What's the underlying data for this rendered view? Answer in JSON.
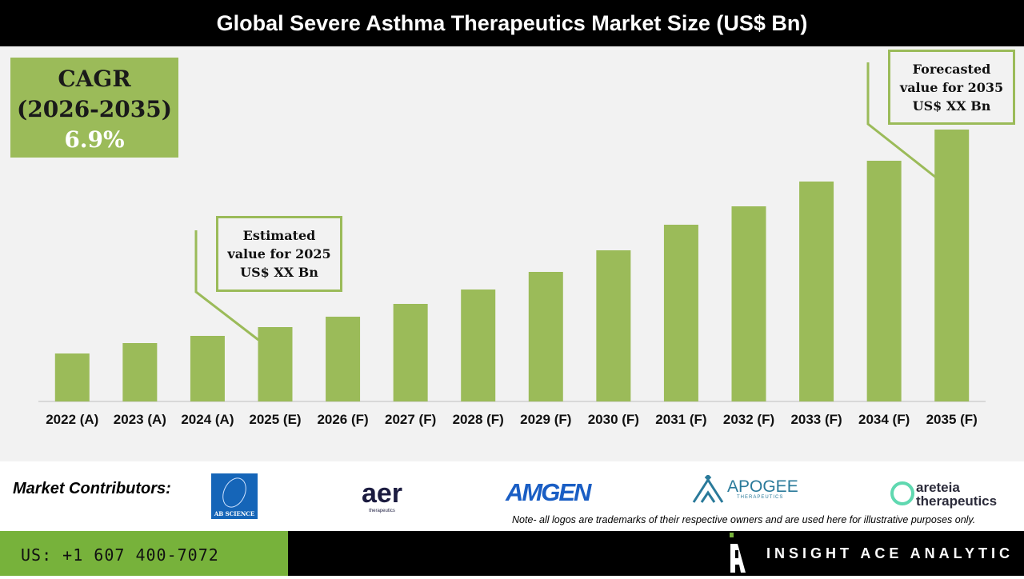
{
  "title": "Global Severe Asthma Therapeutics Market Size (US$ Bn)",
  "cagr": {
    "label": "CAGR",
    "period": "(2026-2035)",
    "value": "6.9%"
  },
  "callouts": {
    "estimated": [
      "Estimated",
      "value for 2025",
      "US$ XX Bn"
    ],
    "forecast": [
      "Forecasted",
      "value for 2035",
      "US$ XX Bn"
    ]
  },
  "chart_data": {
    "type": "bar",
    "title": "Global Severe Asthma Therapeutics Market Size (US$ Bn)",
    "categories": [
      "2022 (A)",
      "2023 (A)",
      "2024 (A)",
      "2025 (E)",
      "2026 (F)",
      "2027 (F)",
      "2028 (F)",
      "2029 (F)",
      "2030 (F)",
      "2031 (F)",
      "2032 (F)",
      "2033 (F)",
      "2034 (F)",
      "2035 (F)"
    ],
    "values": [
      60,
      73,
      82,
      93,
      106,
      122,
      140,
      162,
      189,
      221,
      244,
      275,
      301,
      340
    ],
    "value_note_relative_only": true,
    "ylim": [
      0,
      440
    ],
    "grid": false,
    "bar_color": "#9bbb59"
  },
  "contributors": {
    "label": "Market Contributors:",
    "logos": [
      "AB SCIENCE",
      "aer",
      "therapeutics",
      "AMGEN",
      "APOGEE",
      "THERAPEUTICS",
      "areteia",
      "therapeutics"
    ]
  },
  "note": "Note- all logos are trademarks of their respective owners and are used here for illustrative purposes only.",
  "footer": {
    "phone": "US: +1 607 400-7072",
    "brand": "INSIGHT ACE ANALYTIC"
  },
  "colors": {
    "accent": "#9bbb59",
    "footer_green": "#77b23b"
  }
}
